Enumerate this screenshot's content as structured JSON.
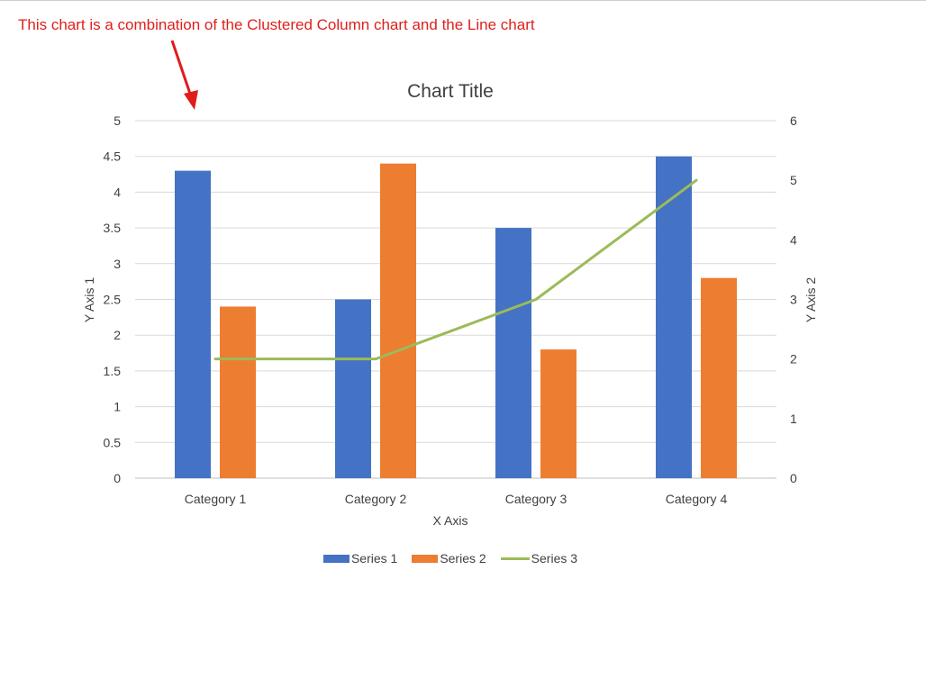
{
  "annotation": {
    "text": "This chart is a combination of the Clustered Column chart and the Line chart",
    "color": "#e0201c"
  },
  "chart_data": {
    "type": "bar",
    "title": "Chart Title",
    "xlabel": "X Axis",
    "ylabel": "Y Axis 1",
    "y2label": "Y Axis 2",
    "categories": [
      "Category 1",
      "Category 2",
      "Category 3",
      "Category 4"
    ],
    "ylim": [
      0,
      5
    ],
    "y_ticks": [
      "0",
      "0.5",
      "1",
      "1.5",
      "2",
      "2.5",
      "3",
      "3.5",
      "4",
      "4.5",
      "5"
    ],
    "y2lim": [
      0,
      6
    ],
    "y2_ticks": [
      "0",
      "1",
      "2",
      "3",
      "4",
      "5",
      "6"
    ],
    "grid": true,
    "legend_position": "bottom",
    "series": [
      {
        "name": "Series 1",
        "type": "bar",
        "axis": "primary",
        "color": "#4472c4",
        "values": [
          4.3,
          2.5,
          3.5,
          4.5
        ]
      },
      {
        "name": "Series 2",
        "type": "bar",
        "axis": "primary",
        "color": "#ed7d31",
        "values": [
          2.4,
          4.4,
          1.8,
          2.8
        ]
      },
      {
        "name": "Series 3",
        "type": "line",
        "axis": "secondary",
        "color": "#9bbb59",
        "values": [
          2,
          2,
          3,
          5
        ]
      }
    ]
  }
}
